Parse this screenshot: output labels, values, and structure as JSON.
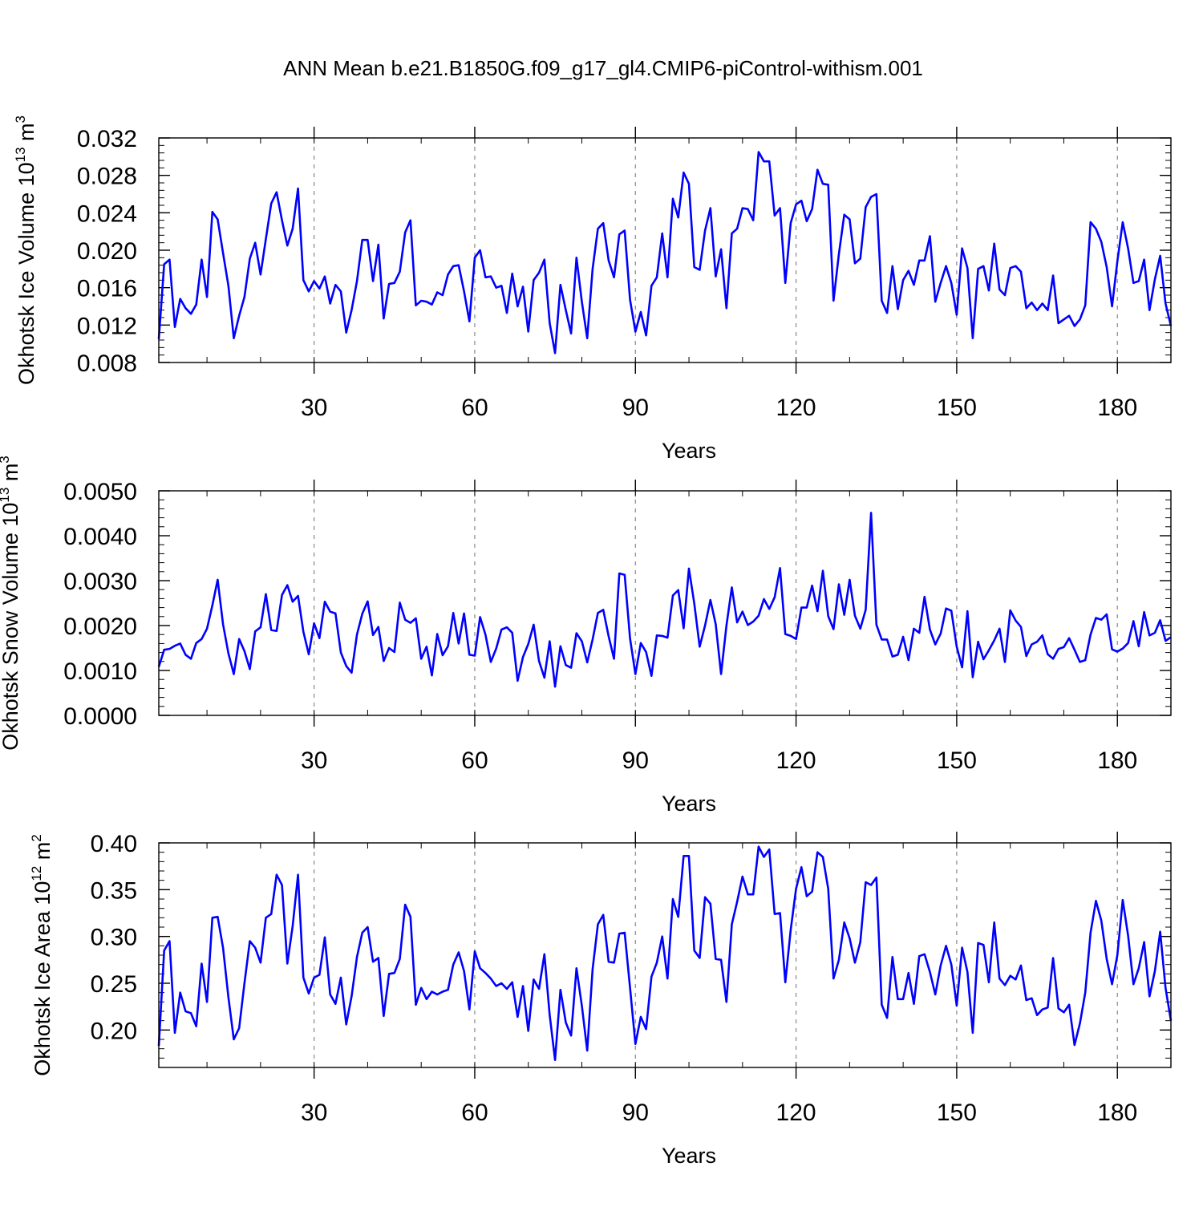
{
  "figure": {
    "title": "ANN Mean b.e21.B1850G.f09_g17_gl4.CMIP6-piControl-withism.001"
  },
  "colors": {
    "series": "#0000ff",
    "axes": "#000000",
    "grid": "#888888",
    "background": "#ffffff"
  },
  "chart_data": [
    {
      "type": "line",
      "id": "ice-volume",
      "title": "",
      "xlabel": "Years",
      "ylabel": "Okhotsk Ice Volume 10",
      "ylabel_sup": "13",
      "ylabel_unit": " m",
      "ylabel_unit_sup": "3",
      "xlim": [
        1,
        190
      ],
      "ylim": [
        0.008,
        0.032
      ],
      "xticks": [
        30,
        60,
        90,
        120,
        150,
        180
      ],
      "xtick_labels": [
        "30",
        "60",
        "90",
        "120",
        "150",
        "180"
      ],
      "yticks": [
        0.008,
        0.012,
        0.016,
        0.02,
        0.024,
        0.028,
        0.032
      ],
      "ytick_labels": [
        "0.008",
        "0.012",
        "0.016",
        "0.020",
        "0.024",
        "0.028",
        "0.032"
      ],
      "grid": "vertical dashed at major x ticks",
      "x_start": 1,
      "series": [
        {
          "name": "Okhotsk Ice Volume",
          "values": [
            0.0105,
            0.0185,
            0.019,
            0.0118,
            0.0148,
            0.0138,
            0.0132,
            0.0142,
            0.019,
            0.015,
            0.0241,
            0.0233,
            0.0197,
            0.0162,
            0.0106,
            0.013,
            0.015,
            0.0191,
            0.0208,
            0.0174,
            0.0212,
            0.025,
            0.0262,
            0.0232,
            0.0205,
            0.0223,
            0.0266,
            0.0168,
            0.0156,
            0.0167,
            0.0159,
            0.0172,
            0.0143,
            0.0163,
            0.0156,
            0.0112,
            0.0136,
            0.0167,
            0.0211,
            0.0211,
            0.0167,
            0.0206,
            0.0127,
            0.0164,
            0.0165,
            0.0177,
            0.0219,
            0.0232,
            0.0141,
            0.0146,
            0.0145,
            0.0142,
            0.0155,
            0.0152,
            0.0174,
            0.0183,
            0.0184,
            0.0156,
            0.0124,
            0.0192,
            0.02,
            0.0171,
            0.0172,
            0.016,
            0.0162,
            0.0133,
            0.0175,
            0.014,
            0.0161,
            0.0113,
            0.0168,
            0.0176,
            0.019,
            0.0122,
            0.009,
            0.0163,
            0.0136,
            0.0111,
            0.0192,
            0.0145,
            0.0106,
            0.018,
            0.0223,
            0.0229,
            0.0189,
            0.0171,
            0.0217,
            0.0221,
            0.0147,
            0.0113,
            0.0134,
            0.0109,
            0.0162,
            0.0171,
            0.0218,
            0.0171,
            0.0255,
            0.0235,
            0.0283,
            0.0271,
            0.0182,
            0.0179,
            0.0221,
            0.0245,
            0.0172,
            0.0201,
            0.0138,
            0.0218,
            0.0223,
            0.0245,
            0.0244,
            0.0232,
            0.0305,
            0.0295,
            0.0295,
            0.0237,
            0.0245,
            0.0165,
            0.0229,
            0.0249,
            0.0253,
            0.0231,
            0.0244,
            0.0286,
            0.0271,
            0.027,
            0.0146,
            0.0196,
            0.0238,
            0.0233,
            0.0186,
            0.0191,
            0.0246,
            0.0257,
            0.026,
            0.0146,
            0.0133,
            0.0183,
            0.0137,
            0.0168,
            0.0178,
            0.0163,
            0.0189,
            0.0189,
            0.0215,
            0.0145,
            0.0165,
            0.0183,
            0.0165,
            0.0131,
            0.0202,
            0.0181,
            0.0106,
            0.018,
            0.0183,
            0.0157,
            0.0207,
            0.0158,
            0.0152,
            0.0181,
            0.0183,
            0.0177,
            0.0138,
            0.0144,
            0.0136,
            0.0143,
            0.0136,
            0.0173,
            0.0122,
            0.0126,
            0.013,
            0.0119,
            0.0126,
            0.0141,
            0.023,
            0.0223,
            0.0209,
            0.0182,
            0.014,
            0.0188,
            0.023,
            0.0202,
            0.0165,
            0.0167,
            0.019,
            0.0136,
            0.0169,
            0.0194,
            0.0143,
            0.0119
          ]
        }
      ]
    },
    {
      "type": "line",
      "id": "snow-volume",
      "title": "",
      "xlabel": "Years",
      "ylabel": "Okhotsk Snow Volume 10",
      "ylabel_sup": "13",
      "ylabel_unit": " m",
      "ylabel_unit_sup": "3",
      "xlim": [
        1,
        190
      ],
      "ylim": [
        0.0,
        0.005
      ],
      "xticks": [
        30,
        60,
        90,
        120,
        150,
        180
      ],
      "xtick_labels": [
        "30",
        "60",
        "90",
        "120",
        "150",
        "180"
      ],
      "yticks": [
        0.0,
        0.001,
        0.002,
        0.003,
        0.004,
        0.005
      ],
      "ytick_labels": [
        "0.0000",
        "0.0010",
        "0.0020",
        "0.0030",
        "0.0040",
        "0.0050"
      ],
      "grid": "vertical dashed at major x ticks",
      "x_start": 1,
      "series": [
        {
          "name": "Okhotsk Snow Volume",
          "values": [
            0.00108,
            0.00146,
            0.00148,
            0.00155,
            0.0016,
            0.00135,
            0.00126,
            0.00161,
            0.0017,
            0.00193,
            0.00245,
            0.00302,
            0.00203,
            0.00138,
            0.00092,
            0.0017,
            0.00143,
            0.00103,
            0.00187,
            0.00196,
            0.0027,
            0.0019,
            0.00188,
            0.00268,
            0.0029,
            0.00253,
            0.00266,
            0.00186,
            0.00136,
            0.00205,
            0.00172,
            0.00253,
            0.00231,
            0.00227,
            0.0014,
            0.0011,
            0.00095,
            0.0018,
            0.00226,
            0.00254,
            0.00179,
            0.00197,
            0.00121,
            0.0015,
            0.00141,
            0.00251,
            0.00213,
            0.00206,
            0.00216,
            0.00126,
            0.00153,
            0.00089,
            0.00181,
            0.00134,
            0.00154,
            0.00228,
            0.0016,
            0.00227,
            0.00135,
            0.00133,
            0.00219,
            0.0018,
            0.00119,
            0.00149,
            0.00191,
            0.00196,
            0.00184,
            0.00077,
            0.0013,
            0.00159,
            0.00202,
            0.00121,
            0.00084,
            0.00165,
            0.00064,
            0.00154,
            0.00112,
            0.00106,
            0.00183,
            0.00165,
            0.00118,
            0.00169,
            0.00228,
            0.00235,
            0.00176,
            0.00126,
            0.00316,
            0.00313,
            0.00171,
            0.00092,
            0.00161,
            0.00141,
            0.00088,
            0.00178,
            0.00177,
            0.00173,
            0.00267,
            0.00279,
            0.00194,
            0.00327,
            0.00249,
            0.00153,
            0.002,
            0.00257,
            0.00203,
            0.00092,
            0.002,
            0.00285,
            0.00207,
            0.00231,
            0.00201,
            0.00209,
            0.00222,
            0.00259,
            0.00237,
            0.00263,
            0.00328,
            0.00181,
            0.00177,
            0.0017,
            0.0024,
            0.0024,
            0.00289,
            0.00232,
            0.00322,
            0.00221,
            0.00192,
            0.00292,
            0.00224,
            0.00302,
            0.00222,
            0.00193,
            0.00235,
            0.00451,
            0.00202,
            0.00169,
            0.00169,
            0.00131,
            0.00135,
            0.00175,
            0.00123,
            0.00193,
            0.00184,
            0.00264,
            0.00191,
            0.00158,
            0.00182,
            0.00238,
            0.00233,
            0.00153,
            0.00107,
            0.00232,
            0.00085,
            0.00164,
            0.00125,
            0.00145,
            0.00167,
            0.00193,
            0.00119,
            0.00234,
            0.00211,
            0.00197,
            0.00132,
            0.00158,
            0.00164,
            0.00178,
            0.00136,
            0.00126,
            0.00148,
            0.00152,
            0.00172,
            0.00146,
            0.00119,
            0.00123,
            0.0018,
            0.00217,
            0.00213,
            0.00225,
            0.00147,
            0.00142,
            0.00149,
            0.00161,
            0.0021,
            0.00154,
            0.0023,
            0.00178,
            0.00184,
            0.00212,
            0.00166,
            0.00174
          ]
        }
      ]
    },
    {
      "type": "line",
      "id": "ice-area",
      "title": "",
      "xlabel": "Years",
      "ylabel": "Okhotsk Ice Area 10",
      "ylabel_sup": "12",
      "ylabel_unit": " m",
      "ylabel_unit_sup": "2",
      "xlim": [
        1,
        190
      ],
      "ylim": [
        0.16,
        0.4
      ],
      "xticks": [
        30,
        60,
        90,
        120,
        150,
        180
      ],
      "xtick_labels": [
        "30",
        "60",
        "90",
        "120",
        "150",
        "180"
      ],
      "yticks": [
        0.2,
        0.25,
        0.3,
        0.35,
        0.4
      ],
      "ytick_labels": [
        "0.20",
        "0.25",
        "0.30",
        "0.35",
        "0.40"
      ],
      "grid": "vertical dashed at major x ticks",
      "x_start": 1,
      "series": [
        {
          "name": "Okhotsk Ice Area",
          "values": [
            0.183,
            0.285,
            0.295,
            0.197,
            0.24,
            0.22,
            0.218,
            0.204,
            0.271,
            0.23,
            0.32,
            0.321,
            0.288,
            0.235,
            0.19,
            0.202,
            0.25,
            0.295,
            0.288,
            0.272,
            0.32,
            0.324,
            0.366,
            0.355,
            0.271,
            0.311,
            0.366,
            0.256,
            0.239,
            0.256,
            0.259,
            0.299,
            0.238,
            0.228,
            0.256,
            0.206,
            0.236,
            0.278,
            0.304,
            0.31,
            0.273,
            0.277,
            0.215,
            0.26,
            0.261,
            0.276,
            0.334,
            0.321,
            0.227,
            0.245,
            0.233,
            0.241,
            0.238,
            0.241,
            0.243,
            0.27,
            0.283,
            0.263,
            0.222,
            0.284,
            0.266,
            0.261,
            0.255,
            0.247,
            0.25,
            0.244,
            0.251,
            0.214,
            0.247,
            0.199,
            0.254,
            0.244,
            0.281,
            0.216,
            0.168,
            0.243,
            0.208,
            0.194,
            0.266,
            0.226,
            0.178,
            0.265,
            0.313,
            0.323,
            0.273,
            0.272,
            0.303,
            0.304,
            0.245,
            0.185,
            0.214,
            0.201,
            0.257,
            0.272,
            0.3,
            0.255,
            0.34,
            0.321,
            0.386,
            0.386,
            0.285,
            0.277,
            0.342,
            0.335,
            0.276,
            0.275,
            0.23,
            0.313,
            0.337,
            0.364,
            0.345,
            0.345,
            0.396,
            0.385,
            0.393,
            0.324,
            0.325,
            0.251,
            0.307,
            0.351,
            0.374,
            0.343,
            0.348,
            0.39,
            0.385,
            0.351,
            0.255,
            0.275,
            0.315,
            0.298,
            0.272,
            0.294,
            0.358,
            0.355,
            0.363,
            0.227,
            0.213,
            0.278,
            0.233,
            0.233,
            0.261,
            0.228,
            0.279,
            0.281,
            0.262,
            0.238,
            0.269,
            0.29,
            0.27,
            0.226,
            0.288,
            0.262,
            0.197,
            0.293,
            0.291,
            0.251,
            0.315,
            0.255,
            0.248,
            0.258,
            0.254,
            0.269,
            0.232,
            0.234,
            0.216,
            0.222,
            0.224,
            0.277,
            0.223,
            0.219,
            0.227,
            0.184,
            0.207,
            0.24,
            0.304,
            0.338,
            0.317,
            0.276,
            0.249,
            0.28,
            0.339,
            0.301,
            0.249,
            0.266,
            0.294,
            0.236,
            0.263,
            0.305,
            0.245,
            0.21
          ]
        }
      ]
    }
  ]
}
